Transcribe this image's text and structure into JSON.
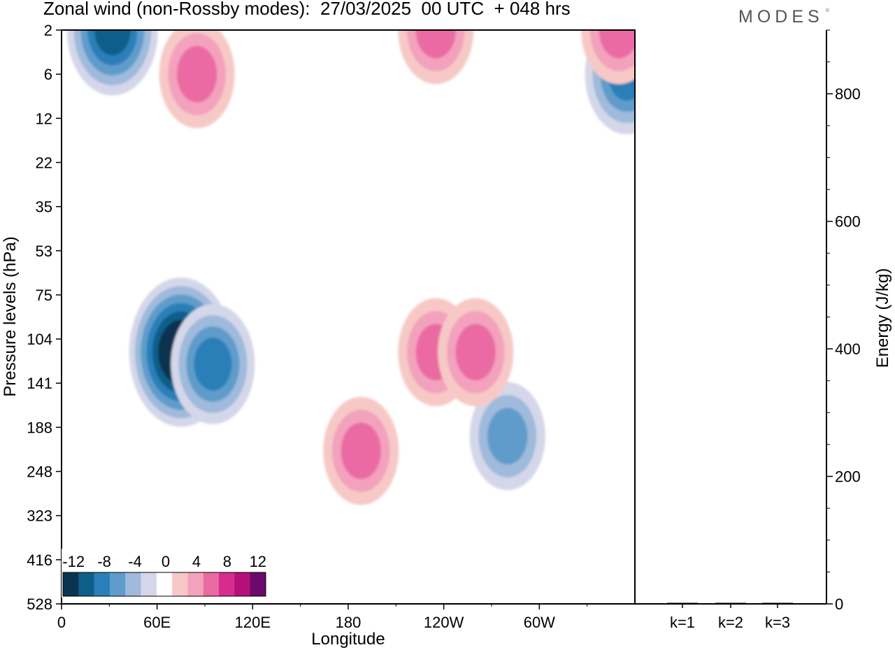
{
  "header": {
    "title": "Zonal wind (non-Rossby modes):  27/03/2025  00 UTC  + 048 hrs",
    "brand": "MODES",
    "brand_mark": "©"
  },
  "chart_data": [
    {
      "type": "heatmap",
      "title": "Zonal wind (non-Rossby modes):  27/03/2025  00 UTC  + 048 hrs",
      "xlabel": "Longitude",
      "ylabel": "Pressure levels (hPa)",
      "x_ticks": [
        "0",
        "60E",
        "120E",
        "180",
        "120W",
        "60W"
      ],
      "x_tick_degrees": [
        0,
        60,
        120,
        180,
        240,
        300
      ],
      "xlim": [
        0,
        360
      ],
      "y_ticks": [
        "2",
        "6",
        "12",
        "22",
        "35",
        "53",
        "75",
        "104",
        "141",
        "188",
        "248",
        "323",
        "416",
        "528"
      ],
      "y_scale": "pressure levels (top to bottom)",
      "colorbar": {
        "labels": [
          "-12",
          "-8",
          "-4",
          "0",
          "4",
          "8",
          "12"
        ],
        "levels": [
          -14,
          -12,
          -10,
          -8,
          -6,
          -4,
          -2,
          2,
          4,
          6,
          8,
          10,
          12,
          14
        ],
        "colors": [
          "#0c3350",
          "#105e8a",
          "#2a7fb8",
          "#5f9ccb",
          "#9fbadb",
          "#d4d7e9",
          "#ffffff",
          "#f7c9c6",
          "#f3a2bd",
          "#eb6aa4",
          "#d72b8d",
          "#b3107a",
          "#6b0a6a"
        ],
        "placement": "bottom-left"
      },
      "features": [
        {
          "label": "negative",
          "lon": 75,
          "level": 115,
          "value": -14
        },
        {
          "label": "negative",
          "lon": 95,
          "level": 125,
          "value": -8
        },
        {
          "label": "negative",
          "lon": 32,
          "level": 2,
          "value": -10
        },
        {
          "label": "negative",
          "lon": 355,
          "level": 6,
          "value": -8
        },
        {
          "label": "negative",
          "lon": 280,
          "level": 200,
          "value": -6
        },
        {
          "label": "positive",
          "lon": 188,
          "level": 220,
          "value": 6
        },
        {
          "label": "positive",
          "lon": 85,
          "level": 6,
          "value": 6
        },
        {
          "label": "positive",
          "lon": 235,
          "level": 2,
          "value": 6
        },
        {
          "label": "positive",
          "lon": 350,
          "level": 2,
          "value": 6
        },
        {
          "label": "positive",
          "lon": 235,
          "level": 115,
          "value": 6
        },
        {
          "label": "positive",
          "lon": 260,
          "level": 115,
          "value": 6
        }
      ]
    },
    {
      "type": "bar",
      "categories": [
        "k=1",
        "k=2",
        "k=3"
      ],
      "values": [
        1.5,
        1.0,
        0.8
      ],
      "ylabel": "Energy (J/kg)",
      "ylim": [
        0,
        900
      ],
      "y_ticks": [
        0,
        200,
        400,
        600,
        800
      ],
      "axis_side": "right"
    }
  ]
}
